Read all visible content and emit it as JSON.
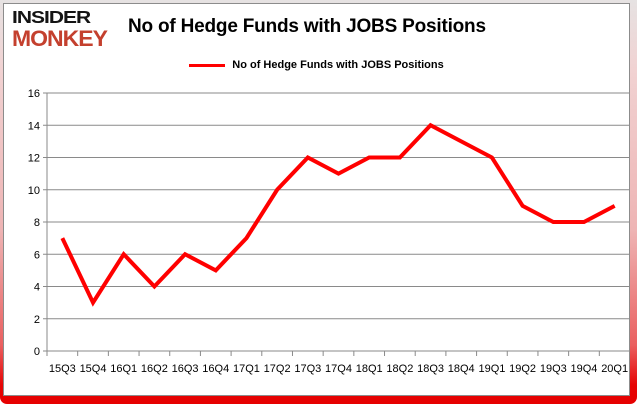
{
  "logo": {
    "line1": "INSIDER",
    "line2": "MONKEY"
  },
  "header": {
    "title": "No of Hedge Funds with JOBS Positions"
  },
  "legend": {
    "label": "No of Hedge Funds with JOBS Positions",
    "line_color": "#ff0000"
  },
  "chart_data": {
    "type": "line",
    "title": "No of Hedge Funds with JOBS Positions",
    "categories": [
      "15Q3",
      "15Q4",
      "16Q1",
      "16Q2",
      "16Q3",
      "16Q4",
      "17Q1",
      "17Q2",
      "17Q3",
      "17Q4",
      "18Q1",
      "18Q2",
      "18Q3",
      "18Q4",
      "19Q1",
      "19Q2",
      "19Q3",
      "19Q4",
      "20Q1"
    ],
    "series": [
      {
        "name": "No of Hedge Funds with JOBS Positions",
        "color": "#ff0000",
        "values": [
          7,
          3,
          6,
          4,
          6,
          5,
          7,
          10,
          12,
          11,
          12,
          12,
          14,
          13,
          12,
          9,
          8,
          8,
          9
        ]
      }
    ],
    "ylim": [
      0,
      16
    ],
    "yticks": [
      0,
      2,
      4,
      6,
      8,
      10,
      12,
      14,
      16
    ],
    "xlabel": "",
    "ylabel": "",
    "grid": "horizontal",
    "legend_position": "top-center"
  },
  "colors": {
    "series_red": "#ff0000",
    "logo_red": "#c4402e",
    "grid_gray": "#8a8a8a",
    "frame_bottom_red": "#e60000",
    "frame_pink": "#eeb4b4"
  }
}
